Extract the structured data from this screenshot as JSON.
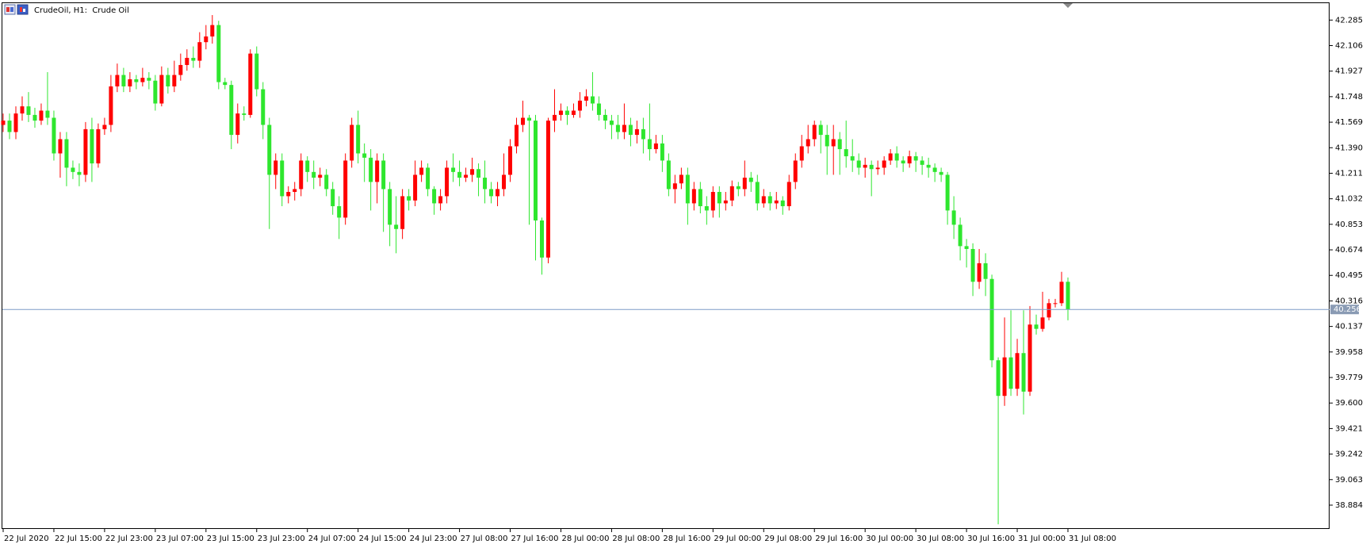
{
  "chart_data": {
    "type": "candlestick",
    "title": "CrudeOil, H1:  Crude Oil",
    "up_color": "#ff0000",
    "down_color": "#2ee62e",
    "last_price": 40.256,
    "ylim": [
      38.717,
      42.409
    ],
    "yticks": [
      42.285,
      42.106,
      41.927,
      41.748,
      41.569,
      {
        "value": 41.39,
        "label": "41.390"
      },
      41.211,
      41.032,
      40.853,
      40.674,
      40.495,
      40.316,
      40.137,
      39.958,
      39.779,
      {
        "value": 39.6,
        "label": "39.600"
      },
      39.421,
      39.242,
      39.063,
      38.884
    ],
    "categories": [
      "22 Jul 2020",
      null,
      null,
      null,
      null,
      null,
      null,
      null,
      "22 Jul 15:00",
      null,
      null,
      null,
      null,
      null,
      null,
      null,
      "22 Jul 23:00",
      null,
      null,
      null,
      null,
      null,
      null,
      null,
      "23 Jul 07:00",
      null,
      null,
      null,
      null,
      null,
      null,
      null,
      "23 Jul 15:00",
      null,
      null,
      null,
      null,
      null,
      null,
      null,
      "23 Jul 23:00",
      null,
      null,
      null,
      null,
      null,
      null,
      null,
      "24 Jul 07:00",
      null,
      null,
      null,
      null,
      null,
      null,
      null,
      "24 Jul 15:00",
      null,
      null,
      null,
      null,
      null,
      null,
      null,
      "24 Jul 23:00",
      null,
      null,
      null,
      null,
      null,
      null,
      null,
      "27 Jul 08:00",
      null,
      null,
      null,
      null,
      null,
      null,
      null,
      "27 Jul 16:00",
      null,
      null,
      null,
      null,
      null,
      null,
      null,
      "28 Jul 00:00",
      null,
      null,
      null,
      null,
      null,
      null,
      null,
      "28 Jul 08:00",
      null,
      null,
      null,
      null,
      null,
      null,
      null,
      "28 Jul 16:00",
      null,
      null,
      null,
      null,
      null,
      null,
      null,
      "29 Jul 00:00",
      null,
      null,
      null,
      null,
      null,
      null,
      null,
      "29 Jul 08:00",
      null,
      null,
      null,
      null,
      null,
      null,
      null,
      "29 Jul 16:00",
      null,
      null,
      null,
      null,
      null,
      null,
      null,
      "30 Jul 00:00",
      null,
      null,
      null,
      null,
      null,
      null,
      null,
      "30 Jul 08:00",
      null,
      null,
      null,
      null,
      null,
      null,
      null,
      "30 Jul 16:00",
      null,
      null,
      null,
      null,
      null,
      null,
      null,
      "31 Jul 00:00",
      null,
      null,
      null,
      null,
      null,
      null,
      null,
      "31 Jul 08:00"
    ],
    "open": [
      41.55,
      41.58,
      41.5,
      41.63,
      41.68,
      41.62,
      41.58,
      41.65,
      41.6,
      41.35,
      41.45,
      41.25,
      41.22,
      41.2,
      41.52,
      41.28,
      41.52,
      41.55,
      41.82,
      41.9,
      41.82,
      41.87,
      41.85,
      41.88,
      41.86,
      41.7,
      41.9,
      41.82,
      41.9,
      41.97,
      42.02,
      42.0,
      42.13,
      42.17,
      42.25,
      41.85,
      41.83,
      41.48,
      41.63,
      41.62,
      42.05,
      41.8,
      41.55,
      41.2,
      41.3,
      41.05,
      41.08,
      41.1,
      41.3,
      41.22,
      41.18,
      41.2,
      41.1,
      40.98,
      40.9,
      41.3,
      41.55,
      41.35,
      41.32,
      41.15,
      41.3,
      41.1,
      40.85,
      40.82,
      41.05,
      41.02,
      41.2,
      41.25,
      41.1,
      41.0,
      41.05,
      41.25,
      41.22,
      41.18,
      41.2,
      41.24,
      41.18,
      41.1,
      41.05,
      41.1,
      41.2,
      41.4,
      41.55,
      41.6,
      41.58,
      40.88,
      40.62,
      41.58,
      41.62,
      41.65,
      41.62,
      41.65,
      41.72,
      41.75,
      41.7,
      41.62,
      41.58,
      41.55,
      41.5,
      41.55,
      41.48,
      41.52,
      41.45,
      41.38,
      41.42,
      41.3,
      41.1,
      41.14,
      41.2,
      41.0,
      41.1,
      40.98,
      40.95,
      41.08,
      41.0,
      41.02,
      41.12,
      41.1,
      41.18,
      41.15,
      41.0,
      41.05,
      41.0,
      41.02,
      40.98,
      41.15,
      41.3,
      41.4,
      41.45,
      41.55,
      41.48,
      41.4,
      41.45,
      41.38,
      41.33,
      41.3,
      41.25,
      41.27,
      41.24,
      41.25,
      41.3,
      41.35,
      41.3,
      41.28,
      41.33,
      41.3,
      41.27,
      41.25,
      41.22,
      41.2,
      40.95,
      40.85,
      40.7,
      40.68,
      40.45,
      40.58,
      40.47,
      39.9,
      39.65,
      39.92,
      39.7,
      39.95,
      39.68,
      40.15,
      40.12,
      40.2,
      40.3,
      40.3,
      40.45
    ],
    "high": [
      41.63,
      41.63,
      41.68,
      41.75,
      41.78,
      41.67,
      41.7,
      41.92,
      41.65,
      41.5,
      41.5,
      41.3,
      41.28,
      41.57,
      41.6,
      41.56,
      41.6,
      41.9,
      41.98,
      41.95,
      41.92,
      41.9,
      41.95,
      41.92,
      41.9,
      41.96,
      41.95,
      42.0,
      42.05,
      42.08,
      42.1,
      42.2,
      42.25,
      42.32,
      42.28,
      41.88,
      41.86,
      41.7,
      41.68,
      42.08,
      42.1,
      41.85,
      41.6,
      41.35,
      41.35,
      41.12,
      41.15,
      41.35,
      41.33,
      41.3,
      41.25,
      41.24,
      41.15,
      41.05,
      41.35,
      41.6,
      41.65,
      41.42,
      41.38,
      41.35,
      41.35,
      41.15,
      41.05,
      41.1,
      41.1,
      41.3,
      41.3,
      41.28,
      41.12,
      41.1,
      41.3,
      41.35,
      41.3,
      41.25,
      41.32,
      41.28,
      41.3,
      41.15,
      41.15,
      41.35,
      41.45,
      41.6,
      41.72,
      41.62,
      41.62,
      40.9,
      41.6,
      41.8,
      41.7,
      41.68,
      41.7,
      41.78,
      41.8,
      41.92,
      41.75,
      41.66,
      41.62,
      41.62,
      41.7,
      41.6,
      41.58,
      41.6,
      41.7,
      41.48,
      41.48,
      41.35,
      41.2,
      41.25,
      41.25,
      41.15,
      41.15,
      41.05,
      41.12,
      41.12,
      41.08,
      41.16,
      41.15,
      41.3,
      41.22,
      41.2,
      41.1,
      41.08,
      41.08,
      41.05,
      41.2,
      41.35,
      41.48,
      41.55,
      41.58,
      41.58,
      41.55,
      41.55,
      41.5,
      41.58,
      41.45,
      41.35,
      41.32,
      41.3,
      41.3,
      41.33,
      41.38,
      41.4,
      41.33,
      41.37,
      41.36,
      41.33,
      41.32,
      41.28,
      41.25,
      41.22,
      41.05,
      40.9,
      40.75,
      40.72,
      40.68,
      40.65,
      40.5,
      39.92,
      40.2,
      40.25,
      40.05,
      40.25,
      40.28,
      40.22,
      40.38,
      40.33,
      40.33,
      40.52,
      40.48
    ],
    "low": [
      41.5,
      41.45,
      41.45,
      41.58,
      41.57,
      41.53,
      41.55,
      41.55,
      41.3,
      41.18,
      41.12,
      41.17,
      41.12,
      41.15,
      41.15,
      41.25,
      41.48,
      41.5,
      41.78,
      41.78,
      41.78,
      41.8,
      41.82,
      41.8,
      41.65,
      41.68,
      41.77,
      41.78,
      41.86,
      41.93,
      41.95,
      41.95,
      42.08,
      42.12,
      41.8,
      41.8,
      41.38,
      41.42,
      41.58,
      41.6,
      41.75,
      41.45,
      40.82,
      41.1,
      40.98,
      41.0,
      41.02,
      41.05,
      41.15,
      41.1,
      41.12,
      41.05,
      40.92,
      40.75,
      40.85,
      41.25,
      41.28,
      41.15,
      40.95,
      41.0,
      40.8,
      40.7,
      40.65,
      40.75,
      40.95,
      40.98,
      41.15,
      41.05,
      40.92,
      40.95,
      41.0,
      41.15,
      41.12,
      41.15,
      41.15,
      41.05,
      41.0,
      41.0,
      40.98,
      41.05,
      41.15,
      41.35,
      41.5,
      40.85,
      40.6,
      40.5,
      40.58,
      41.5,
      41.58,
      41.55,
      41.6,
      41.6,
      41.68,
      41.65,
      41.58,
      41.52,
      41.45,
      41.45,
      41.45,
      41.4,
      41.42,
      41.35,
      41.3,
      41.35,
      41.22,
      41.05,
      41.0,
      41.1,
      40.85,
      40.95,
      40.93,
      40.85,
      40.9,
      40.9,
      40.95,
      40.98,
      41.05,
      41.05,
      41.08,
      40.95,
      40.97,
      40.95,
      40.96,
      40.92,
      40.95,
      41.1,
      41.25,
      41.35,
      41.4,
      41.35,
      41.2,
      41.2,
      41.2,
      41.25,
      41.22,
      41.2,
      41.18,
      41.05,
      41.2,
      41.2,
      41.27,
      41.25,
      41.22,
      41.25,
      41.22,
      41.2,
      41.18,
      41.15,
      41.15,
      40.85,
      40.75,
      40.6,
      40.55,
      40.35,
      40.4,
      40.35,
      39.85,
      38.75,
      39.58,
      39.65,
      39.65,
      39.52,
      39.65,
      40.08,
      40.1,
      40.18,
      40.27,
      40.28,
      40.18
    ],
    "close": [
      41.58,
      41.5,
      41.63,
      41.68,
      41.62,
      41.58,
      41.65,
      41.6,
      41.35,
      41.45,
      41.25,
      41.22,
      41.2,
      41.52,
      41.28,
      41.52,
      41.55,
      41.82,
      41.9,
      41.82,
      41.87,
      41.85,
      41.88,
      41.86,
      41.7,
      41.9,
      41.82,
      41.9,
      41.97,
      42.02,
      42.0,
      42.13,
      42.17,
      42.25,
      41.85,
      41.83,
      41.48,
      41.63,
      41.62,
      42.05,
      41.8,
      41.55,
      41.2,
      41.3,
      41.05,
      41.08,
      41.1,
      41.3,
      41.22,
      41.18,
      41.2,
      41.1,
      40.98,
      40.9,
      41.3,
      41.55,
      41.35,
      41.32,
      41.15,
      41.3,
      41.1,
      40.85,
      40.82,
      41.05,
      41.02,
      41.2,
      41.25,
      41.1,
      41.0,
      41.05,
      41.25,
      41.22,
      41.18,
      41.2,
      41.24,
      41.18,
      41.1,
      41.05,
      41.1,
      41.2,
      41.4,
      41.55,
      41.6,
      41.58,
      40.88,
      40.62,
      41.58,
      41.62,
      41.65,
      41.62,
      41.65,
      41.72,
      41.75,
      41.7,
      41.62,
      41.58,
      41.55,
      41.5,
      41.55,
      41.48,
      41.52,
      41.45,
      41.38,
      41.42,
      41.3,
      41.1,
      41.14,
      41.2,
      41.0,
      41.1,
      40.98,
      40.95,
      41.08,
      41.0,
      41.02,
      41.12,
      41.1,
      41.18,
      41.15,
      41.0,
      41.05,
      41.0,
      41.02,
      40.98,
      41.15,
      41.3,
      41.4,
      41.45,
      41.55,
      41.48,
      41.4,
      41.45,
      41.38,
      41.33,
      41.3,
      41.25,
      41.27,
      41.24,
      41.25,
      41.3,
      41.35,
      41.3,
      41.28,
      41.33,
      41.3,
      41.27,
      41.25,
      41.22,
      41.2,
      40.95,
      40.85,
      40.7,
      40.68,
      40.45,
      40.58,
      40.47,
      39.9,
      39.65,
      39.92,
      39.7,
      39.95,
      39.68,
      40.15,
      40.12,
      40.2,
      40.3,
      40.3,
      40.45,
      40.256
    ]
  }
}
